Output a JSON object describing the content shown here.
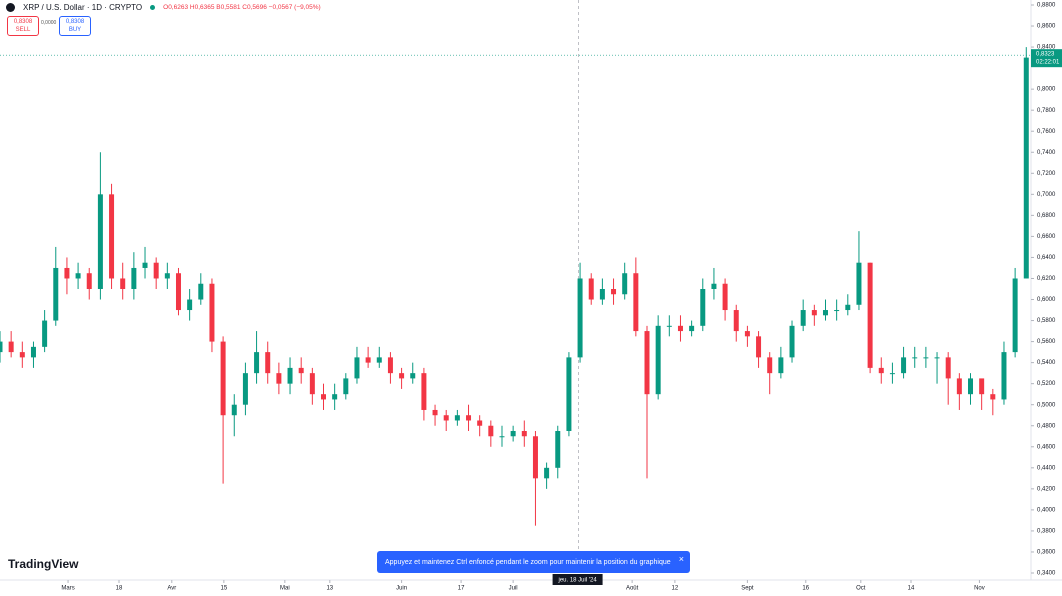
{
  "header": {
    "symbol": "XRP / U.S. Dollar · 1D · CRYPTO",
    "ohlc": "O0,6263 H0,6365 B0,5581 C0,5696 −0,0567 (−9,05%)",
    "sell_price": "0,8308",
    "sell_label": "SELL",
    "spread": "0,0000",
    "buy_price": "0,8308",
    "buy_label": "BUY"
  },
  "toast": "Appuyez et maintenez Ctrl enfoncé pendant le zoom pour maintenir la position du graphique",
  "logo": "TradingView",
  "chart_data": {
    "type": "candlestick",
    "up_color": "#089981",
    "down_color": "#f23645",
    "x": [
      0,
      3,
      6,
      9,
      12,
      15,
      18,
      21,
      24,
      27,
      30,
      33,
      36,
      39,
      42,
      45,
      48,
      51,
      54,
      57,
      60,
      63,
      66,
      69,
      72,
      75,
      78,
      81,
      84,
      87,
      90,
      93,
      96,
      99,
      102,
      105,
      108,
      111,
      114,
      117,
      120,
      123,
      126,
      129,
      132,
      135,
      138,
      141,
      144,
      147,
      150,
      153,
      156,
      159,
      162,
      165,
      168,
      171,
      174,
      177,
      180,
      183,
      186,
      189,
      192,
      195,
      198,
      201,
      204,
      207,
      210,
      213,
      216,
      219,
      222,
      225,
      228,
      231,
      234,
      237,
      240,
      243,
      246,
      249,
      252,
      255,
      258,
      261,
      264,
      267,
      270,
      273,
      276
    ],
    "open": [
      0.55,
      0.56,
      0.55,
      0.545,
      0.555,
      0.58,
      0.63,
      0.62,
      0.625,
      0.61,
      0.7,
      0.62,
      0.61,
      0.63,
      0.635,
      0.62,
      0.625,
      0.59,
      0.6,
      0.615,
      0.56,
      0.49,
      0.5,
      0.53,
      0.55,
      0.53,
      0.52,
      0.535,
      0.53,
      0.51,
      0.505,
      0.51,
      0.525,
      0.545,
      0.54,
      0.545,
      0.53,
      0.525,
      0.53,
      0.495,
      0.49,
      0.485,
      0.49,
      0.485,
      0.48,
      0.47,
      0.47,
      0.475,
      0.47,
      0.43,
      0.44,
      0.475,
      0.545,
      0.62,
      0.6,
      0.61,
      0.605,
      0.625,
      0.57,
      0.51,
      0.575,
      0.575,
      0.57,
      0.575,
      0.61,
      0.615,
      0.59,
      0.57,
      0.565,
      0.545,
      0.53,
      0.545,
      0.575,
      0.59,
      0.585,
      0.59,
      0.59,
      0.595,
      0.635,
      0.535,
      0.53,
      0.53,
      0.545,
      0.545,
      0.545,
      0.545,
      0.525,
      0.51,
      0.525,
      0.51,
      0.505,
      0.55,
      0.62
    ],
    "high": [
      0.57,
      0.57,
      0.56,
      0.56,
      0.59,
      0.65,
      0.64,
      0.635,
      0.63,
      0.74,
      0.71,
      0.635,
      0.645,
      0.65,
      0.64,
      0.635,
      0.63,
      0.61,
      0.625,
      0.62,
      0.565,
      0.51,
      0.54,
      0.57,
      0.56,
      0.54,
      0.545,
      0.545,
      0.535,
      0.52,
      0.52,
      0.53,
      0.555,
      0.555,
      0.555,
      0.55,
      0.535,
      0.54,
      0.535,
      0.5,
      0.495,
      0.495,
      0.5,
      0.49,
      0.485,
      0.48,
      0.48,
      0.485,
      0.475,
      0.445,
      0.48,
      0.55,
      0.635,
      0.625,
      0.62,
      0.62,
      0.635,
      0.64,
      0.575,
      0.585,
      0.585,
      0.585,
      0.58,
      0.62,
      0.63,
      0.62,
      0.595,
      0.575,
      0.57,
      0.55,
      0.555,
      0.58,
      0.6,
      0.595,
      0.6,
      0.6,
      0.605,
      0.665,
      0.635,
      0.545,
      0.54,
      0.555,
      0.555,
      0.555,
      0.55,
      0.55,
      0.53,
      0.53,
      0.52,
      0.515,
      0.56,
      0.63,
      0.84
    ],
    "low": [
      0.54,
      0.545,
      0.535,
      0.535,
      0.55,
      0.575,
      0.605,
      0.61,
      0.6,
      0.6,
      0.61,
      0.6,
      0.6,
      0.62,
      0.61,
      0.61,
      0.585,
      0.58,
      0.595,
      0.55,
      0.425,
      0.47,
      0.49,
      0.52,
      0.52,
      0.51,
      0.51,
      0.52,
      0.5,
      0.495,
      0.495,
      0.505,
      0.52,
      0.535,
      0.535,
      0.52,
      0.515,
      0.52,
      0.485,
      0.48,
      0.475,
      0.48,
      0.475,
      0.47,
      0.46,
      0.46,
      0.465,
      0.46,
      0.385,
      0.42,
      0.43,
      0.47,
      0.54,
      0.595,
      0.595,
      0.595,
      0.6,
      0.565,
      0.43,
      0.505,
      0.565,
      0.56,
      0.565,
      0.57,
      0.6,
      0.58,
      0.56,
      0.555,
      0.535,
      0.51,
      0.525,
      0.54,
      0.57,
      0.575,
      0.58,
      0.58,
      0.585,
      0.59,
      0.53,
      0.52,
      0.52,
      0.525,
      0.535,
      0.535,
      0.52,
      0.5,
      0.495,
      0.5,
      0.495,
      0.49,
      0.5,
      0.545,
      0.62
    ],
    "close": [
      0.56,
      0.55,
      0.545,
      0.555,
      0.58,
      0.63,
      0.62,
      0.625,
      0.61,
      0.7,
      0.62,
      0.61,
      0.63,
      0.635,
      0.62,
      0.625,
      0.59,
      0.6,
      0.615,
      0.56,
      0.49,
      0.5,
      0.53,
      0.55,
      0.53,
      0.52,
      0.535,
      0.53,
      0.51,
      0.505,
      0.51,
      0.525,
      0.545,
      0.54,
      0.545,
      0.53,
      0.525,
      0.53,
      0.495,
      0.49,
      0.485,
      0.49,
      0.485,
      0.48,
      0.47,
      0.47,
      0.475,
      0.47,
      0.43,
      0.44,
      0.475,
      0.545,
      0.62,
      0.6,
      0.61,
      0.605,
      0.625,
      0.57,
      0.51,
      0.575,
      0.575,
      0.57,
      0.575,
      0.61,
      0.615,
      0.59,
      0.57,
      0.565,
      0.545,
      0.53,
      0.545,
      0.575,
      0.59,
      0.585,
      0.59,
      0.59,
      0.595,
      0.635,
      0.535,
      0.53,
      0.53,
      0.545,
      0.545,
      0.545,
      0.545,
      0.525,
      0.51,
      0.525,
      0.51,
      0.505,
      0.55,
      0.62,
      0.83
    ],
    "xlim": [
      0,
      277
    ],
    "xticks": [
      {
        "value": 18.3,
        "label": "Mars"
      },
      {
        "value": 32,
        "label": "18"
      },
      {
        "value": 46.2,
        "label": "Avr"
      },
      {
        "value": 60.2,
        "label": "15"
      },
      {
        "value": 76.6,
        "label": "Mai"
      },
      {
        "value": 88.7,
        "label": "13"
      },
      {
        "value": 108,
        "label": "Juin"
      },
      {
        "value": 124,
        "label": "17"
      },
      {
        "value": 138,
        "label": "Juil"
      },
      {
        "value": 170,
        "label": "Août"
      },
      {
        "value": 181.5,
        "label": "12"
      },
      {
        "value": 201,
        "label": "Sept"
      },
      {
        "value": 216.7,
        "label": "16"
      },
      {
        "value": 231.5,
        "label": "Oct"
      },
      {
        "value": 245,
        "label": "14"
      },
      {
        "value": 263.4,
        "label": "Nov"
      }
    ],
    "ylim": [
      0.34,
      0.88
    ],
    "yticks": [
      {
        "value": 0.34,
        "label": "0,3400"
      },
      {
        "value": 0.36,
        "label": "0,3600"
      },
      {
        "value": 0.38,
        "label": "0,3800"
      },
      {
        "value": 0.4,
        "label": "0,4000"
      },
      {
        "value": 0.42,
        "label": "0,4200"
      },
      {
        "value": 0.44,
        "label": "0,4400"
      },
      {
        "value": 0.46,
        "label": "0,4600"
      },
      {
        "value": 0.48,
        "label": "0,4800"
      },
      {
        "value": 0.5,
        "label": "0,5000"
      },
      {
        "value": 0.52,
        "label": "0,5200"
      },
      {
        "value": 0.54,
        "label": "0,5400"
      },
      {
        "value": 0.56,
        "label": "0,5600"
      },
      {
        "value": 0.58,
        "label": "0,5800"
      },
      {
        "value": 0.6,
        "label": "0,6000"
      },
      {
        "value": 0.62,
        "label": "0,6200"
      },
      {
        "value": 0.64,
        "label": "0,6400"
      },
      {
        "value": 0.66,
        "label": "0,6600"
      },
      {
        "value": 0.68,
        "label": "0,6800"
      },
      {
        "value": 0.7,
        "label": "0,7000"
      },
      {
        "value": 0.72,
        "label": "0,7200"
      },
      {
        "value": 0.74,
        "label": "0,7400"
      },
      {
        "value": 0.76,
        "label": "0,7600"
      },
      {
        "value": 0.78,
        "label": "0,7800"
      },
      {
        "value": 0.8,
        "label": "0,8000"
      },
      {
        "value": 0.84,
        "label": "0,8400"
      },
      {
        "value": 0.86,
        "label": "0,8600"
      },
      {
        "value": 0.88,
        "label": "0,8800"
      }
    ],
    "last_price": {
      "value": 0.8323,
      "label": "0,8323",
      "countdown": "02:22:01"
    },
    "crosshair": {
      "value": 155.6,
      "label": "jeu. 18 Juil '24"
    }
  }
}
